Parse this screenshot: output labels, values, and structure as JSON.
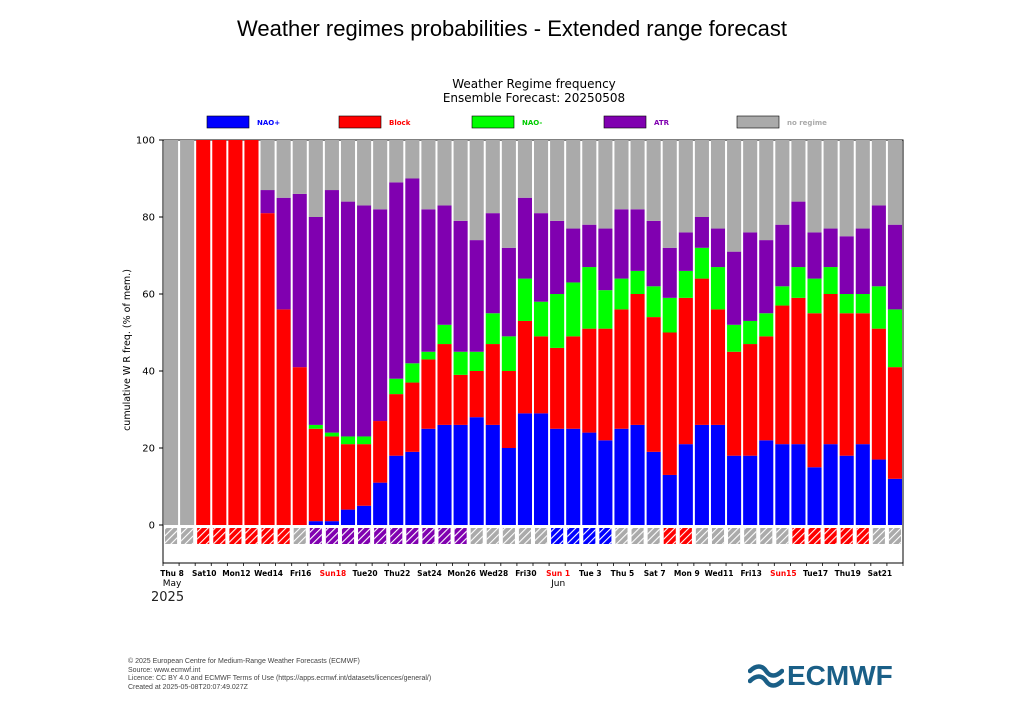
{
  "page": {
    "title": "Weather regimes probabilities - Extended range forecast"
  },
  "chart_data": {
    "type": "bar",
    "stacked": true,
    "title": "Weather Regime frequency",
    "subtitle": "Ensemble Forecast: 20250508",
    "xlabel": "",
    "ylabel": "cumulative W R freq. (% of mem.)",
    "ylim": [
      0,
      100
    ],
    "yticks": [
      0,
      20,
      40,
      60,
      80,
      100
    ],
    "grid": false,
    "legend_position": "top",
    "series": [
      {
        "name": "NAO+",
        "color": "#0000ff",
        "values": [
          0,
          0,
          0,
          0,
          0,
          0,
          0,
          0,
          0,
          1,
          1,
          4,
          5,
          11,
          18,
          19,
          25,
          26,
          26,
          28,
          26,
          20,
          29,
          29,
          25,
          25,
          24,
          22,
          25,
          26,
          19,
          13,
          21,
          26,
          26,
          18,
          18,
          22,
          21,
          21,
          15,
          21,
          18,
          21,
          17,
          12
        ]
      },
      {
        "name": "Block",
        "color": "#ff0000",
        "values": [
          0,
          0,
          100,
          100,
          100,
          100,
          81,
          56,
          41,
          24,
          22,
          17,
          16,
          16,
          16,
          18,
          18,
          21,
          13,
          12,
          21,
          20,
          24,
          20,
          21,
          24,
          27,
          29,
          31,
          34,
          35,
          37,
          38,
          38,
          30,
          27,
          29,
          27,
          36,
          38,
          40,
          39,
          37,
          34,
          34,
          29
        ]
      },
      {
        "name": "NAO-",
        "color": "#00ff00",
        "values": [
          0,
          0,
          0,
          0,
          0,
          0,
          0,
          0,
          0,
          1,
          1,
          2,
          2,
          0,
          4,
          5,
          2,
          5,
          6,
          5,
          8,
          9,
          11,
          9,
          14,
          14,
          16,
          10,
          8,
          6,
          8,
          9,
          7,
          8,
          11,
          7,
          6,
          6,
          5,
          8,
          9,
          7,
          5,
          5,
          11,
          15
        ]
      },
      {
        "name": "ATR",
        "color": "#8000b0",
        "values": [
          0,
          0,
          0,
          0,
          0,
          0,
          6,
          29,
          45,
          54,
          63,
          61,
          60,
          55,
          51,
          48,
          37,
          31,
          34,
          29,
          26,
          23,
          21,
          23,
          19,
          14,
          11,
          16,
          18,
          16,
          17,
          13,
          10,
          8,
          10,
          19,
          23,
          19,
          16,
          17,
          12,
          10,
          15,
          17,
          21,
          22
        ]
      },
      {
        "name": "no regime",
        "color": "#aaaaaa",
        "values": [
          100,
          100,
          0,
          0,
          0,
          0,
          13,
          15,
          14,
          20,
          13,
          16,
          17,
          18,
          11,
          10,
          18,
          17,
          21,
          26,
          19,
          28,
          15,
          19,
          21,
          23,
          22,
          23,
          18,
          18,
          21,
          28,
          24,
          20,
          23,
          29,
          24,
          26,
          22,
          16,
          24,
          23,
          25,
          23,
          17,
          22
        ]
      }
    ],
    "daily_regime_marks": [
      "no regime",
      "no regime",
      "Block",
      "Block",
      "Block",
      "Block",
      "Block",
      "Block",
      "no regime",
      "ATR",
      "ATR",
      "ATR",
      "ATR",
      "ATR",
      "ATR",
      "ATR",
      "ATR",
      "ATR",
      "ATR",
      "no regime",
      "no regime",
      "no regime",
      "no regime",
      "no regime",
      "NAO+",
      "NAO+",
      "NAO+",
      "NAO+",
      "no regime",
      "no regime",
      "no regime",
      "Block",
      "Block",
      "no regime",
      "no regime",
      "no regime",
      "no regime",
      "no regime",
      "no regime",
      "Block",
      "Block",
      "Block",
      "Block",
      "Block",
      "no regime",
      "no regime"
    ],
    "xtick_labels": [
      {
        "i": 0,
        "text": "Thu 8",
        "color": "#000000"
      },
      {
        "i": 2,
        "text": "Sat10",
        "color": "#000000"
      },
      {
        "i": 4,
        "text": "Mon12",
        "color": "#000000"
      },
      {
        "i": 6,
        "text": "Wed14",
        "color": "#000000"
      },
      {
        "i": 8,
        "text": "Fri16",
        "color": "#000000"
      },
      {
        "i": 10,
        "text": "Sun18",
        "color": "#ff0000"
      },
      {
        "i": 12,
        "text": "Tue20",
        "color": "#000000"
      },
      {
        "i": 14,
        "text": "Thu22",
        "color": "#000000"
      },
      {
        "i": 16,
        "text": "Sat24",
        "color": "#000000"
      },
      {
        "i": 18,
        "text": "Mon26",
        "color": "#000000"
      },
      {
        "i": 20,
        "text": "Wed28",
        "color": "#000000"
      },
      {
        "i": 22,
        "text": "Fri30",
        "color": "#000000"
      },
      {
        "i": 24,
        "text": "Sun 1",
        "color": "#ff0000"
      },
      {
        "i": 26,
        "text": "Tue 3",
        "color": "#000000"
      },
      {
        "i": 28,
        "text": "Thu 5",
        "color": "#000000"
      },
      {
        "i": 30,
        "text": "Sat 7",
        "color": "#000000"
      },
      {
        "i": 32,
        "text": "Mon 9",
        "color": "#000000"
      },
      {
        "i": 34,
        "text": "Wed11",
        "color": "#000000"
      },
      {
        "i": 36,
        "text": "Fri13",
        "color": "#000000"
      },
      {
        "i": 38,
        "text": "Sun15",
        "color": "#ff0000"
      },
      {
        "i": 40,
        "text": "Tue17",
        "color": "#000000"
      },
      {
        "i": 42,
        "text": "Thu19",
        "color": "#000000"
      },
      {
        "i": 44,
        "text": "Sat21",
        "color": "#000000"
      }
    ],
    "month_labels": [
      {
        "i": 0,
        "text": "May"
      },
      {
        "i": 24,
        "text": "Jun"
      }
    ],
    "year_label": "2025"
  },
  "footer": {
    "line1": "© 2025 European Centre for Medium-Range Weather Forecasts (ECMWF)",
    "line2": "Source: www.ecmwf.int",
    "line3": "Licence: CC BY 4.0 and ECMWF Terms of Use (https://apps.ecmwf.int/datasets/licences/general/)",
    "line4": "Created at 2025-05-08T20:07:49.027Z"
  },
  "logo": {
    "text": "ECMWF",
    "color": "#1a5f87"
  }
}
